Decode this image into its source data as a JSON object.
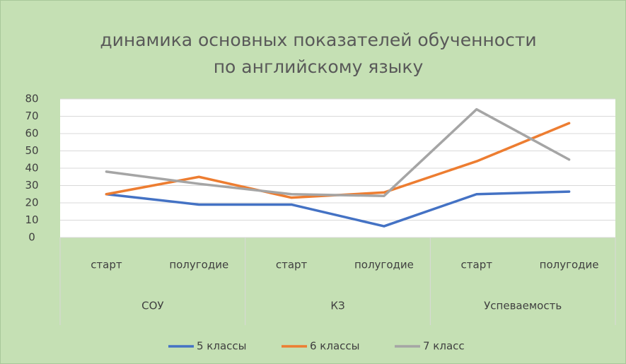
{
  "chart_data": {
    "type": "line",
    "title": [
      "динамика основных показателей обученности",
      "по английскому языку"
    ],
    "categories": [
      "старт",
      "полугодие",
      "старт",
      "полугодие",
      "старт",
      "полугодие"
    ],
    "groups": [
      "СОУ",
      "КЗ",
      "Успеваемость"
    ],
    "series": [
      {
        "name": "5 классы",
        "color": "#4472c4",
        "values": [
          25,
          19,
          19,
          6.5,
          25,
          26.5
        ]
      },
      {
        "name": "6 классы",
        "color": "#ed7d31",
        "values": [
          25,
          35,
          23,
          26,
          44,
          66
        ]
      },
      {
        "name": "7 класс",
        "color": "#a5a5a5",
        "values": [
          38,
          31,
          25,
          24,
          74,
          45
        ]
      }
    ],
    "ylim": [
      0,
      80
    ],
    "yticks": [
      0,
      10,
      20,
      30,
      40,
      50,
      60,
      70,
      80
    ],
    "grid": true,
    "legend": "bottom"
  }
}
